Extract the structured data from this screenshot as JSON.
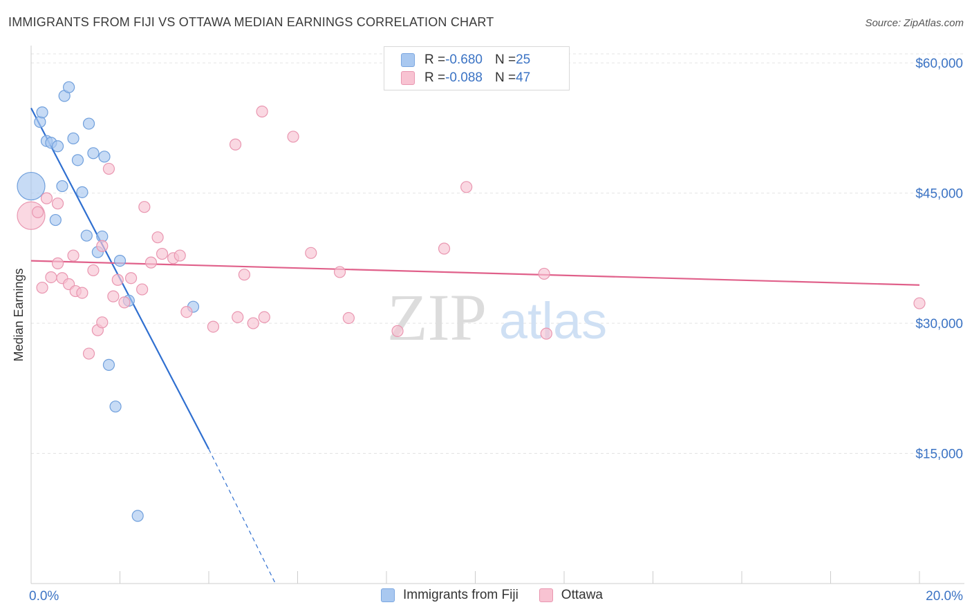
{
  "title": "IMMIGRANTS FROM FIJI VS OTTAWA MEDIAN EARNINGS CORRELATION CHART",
  "source": "Source: ZipAtlas.com",
  "watermark": {
    "zip": "ZIP",
    "atlas": "atlas"
  },
  "legend": {
    "rows": [
      {
        "r_label": "R = ",
        "r_value": "-0.680",
        "n_label": "N = ",
        "n_value": "25",
        "color": "#a9c8f0",
        "border": "#7aa6e0"
      },
      {
        "r_label": "R = ",
        "r_value": "-0.088",
        "n_label": "N = ",
        "n_value": "47",
        "color": "#f8c3d2",
        "border": "#e996b0"
      }
    ]
  },
  "chart_data": {
    "type": "scatter",
    "title": "IMMIGRANTS FROM FIJI VS OTTAWA MEDIAN EARNINGS CORRELATION CHART",
    "xlabel": "",
    "ylabel": "Median Earnings",
    "xlim": [
      0,
      20
    ],
    "ylim": [
      0,
      62000
    ],
    "x_tick_labels": [
      "0.0%",
      "20.0%"
    ],
    "y_ticks": [
      15000,
      30000,
      45000,
      60000
    ],
    "y_tick_labels": [
      "$15,000",
      "$30,000",
      "$45,000",
      "$60,000"
    ],
    "series": [
      {
        "name": "Immigrants from Fiji",
        "color": "#a9c8f0",
        "stroke": "#6f9fdc",
        "line_color": "#2f6fd0",
        "trend": {
          "x0": 0.0,
          "y0": 54800,
          "x1": 4.0,
          "y1": 15500,
          "dash_x1": 5.5,
          "dash_y1": 0
        },
        "points": [
          {
            "x": 0.0,
            "y": 45800,
            "big": true
          },
          {
            "x": 0.2,
            "y": 53200
          },
          {
            "x": 0.25,
            "y": 54300
          },
          {
            "x": 0.35,
            "y": 51000
          },
          {
            "x": 0.45,
            "y": 50800
          },
          {
            "x": 0.6,
            "y": 50400
          },
          {
            "x": 0.7,
            "y": 45800
          },
          {
            "x": 0.55,
            "y": 41900
          },
          {
            "x": 0.75,
            "y": 56200
          },
          {
            "x": 0.85,
            "y": 57200
          },
          {
            "x": 0.95,
            "y": 51300
          },
          {
            "x": 1.05,
            "y": 48800
          },
          {
            "x": 1.15,
            "y": 45100
          },
          {
            "x": 1.3,
            "y": 53000
          },
          {
            "x": 1.4,
            "y": 49600
          },
          {
            "x": 1.65,
            "y": 49200
          },
          {
            "x": 1.25,
            "y": 40100
          },
          {
            "x": 1.5,
            "y": 38200
          },
          {
            "x": 1.6,
            "y": 40000
          },
          {
            "x": 2.0,
            "y": 37200
          },
          {
            "x": 2.2,
            "y": 32600
          },
          {
            "x": 3.65,
            "y": 31900
          },
          {
            "x": 1.75,
            "y": 25200
          },
          {
            "x": 1.9,
            "y": 20400
          },
          {
            "x": 2.4,
            "y": 7800
          }
        ]
      },
      {
        "name": "Ottawa",
        "color": "#f8c3d2",
        "stroke": "#e996b0",
        "line_color": "#e0608a",
        "trend": {
          "x0": 0.0,
          "y0": 37200,
          "x1": 20.0,
          "y1": 34400
        },
        "points": [
          {
            "x": 0.0,
            "y": 42400,
            "big": true
          },
          {
            "x": 0.15,
            "y": 42800
          },
          {
            "x": 0.25,
            "y": 34100
          },
          {
            "x": 0.45,
            "y": 35300
          },
          {
            "x": 0.6,
            "y": 36900
          },
          {
            "x": 0.35,
            "y": 44400
          },
          {
            "x": 0.6,
            "y": 43800
          },
          {
            "x": 0.7,
            "y": 35200
          },
          {
            "x": 0.85,
            "y": 34500
          },
          {
            "x": 0.95,
            "y": 37800
          },
          {
            "x": 1.0,
            "y": 33700
          },
          {
            "x": 1.15,
            "y": 33500
          },
          {
            "x": 1.3,
            "y": 26500
          },
          {
            "x": 1.4,
            "y": 36100
          },
          {
            "x": 1.5,
            "y": 29200
          },
          {
            "x": 1.6,
            "y": 30100
          },
          {
            "x": 1.6,
            "y": 38900
          },
          {
            "x": 1.75,
            "y": 47800
          },
          {
            "x": 1.85,
            "y": 33100
          },
          {
            "x": 1.95,
            "y": 35000
          },
          {
            "x": 2.1,
            "y": 32400
          },
          {
            "x": 2.25,
            "y": 35200
          },
          {
            "x": 2.5,
            "y": 33900
          },
          {
            "x": 2.55,
            "y": 43400
          },
          {
            "x": 2.7,
            "y": 37000
          },
          {
            "x": 2.85,
            "y": 39900
          },
          {
            "x": 2.95,
            "y": 38000
          },
          {
            "x": 3.2,
            "y": 37500
          },
          {
            "x": 3.35,
            "y": 37800
          },
          {
            "x": 3.5,
            "y": 31300
          },
          {
            "x": 4.1,
            "y": 29600
          },
          {
            "x": 4.6,
            "y": 50600
          },
          {
            "x": 4.65,
            "y": 30700
          },
          {
            "x": 4.8,
            "y": 35600
          },
          {
            "x": 5.0,
            "y": 30000
          },
          {
            "x": 5.2,
            "y": 54400
          },
          {
            "x": 5.25,
            "y": 30700
          },
          {
            "x": 5.9,
            "y": 51500
          },
          {
            "x": 6.3,
            "y": 38100
          },
          {
            "x": 6.95,
            "y": 35900
          },
          {
            "x": 7.15,
            "y": 30600
          },
          {
            "x": 8.25,
            "y": 29100
          },
          {
            "x": 9.3,
            "y": 38600
          },
          {
            "x": 9.8,
            "y": 45700
          },
          {
            "x": 11.6,
            "y": 28800
          },
          {
            "x": 11.55,
            "y": 35700
          },
          {
            "x": 20.0,
            "y": 32300
          }
        ]
      }
    ]
  }
}
